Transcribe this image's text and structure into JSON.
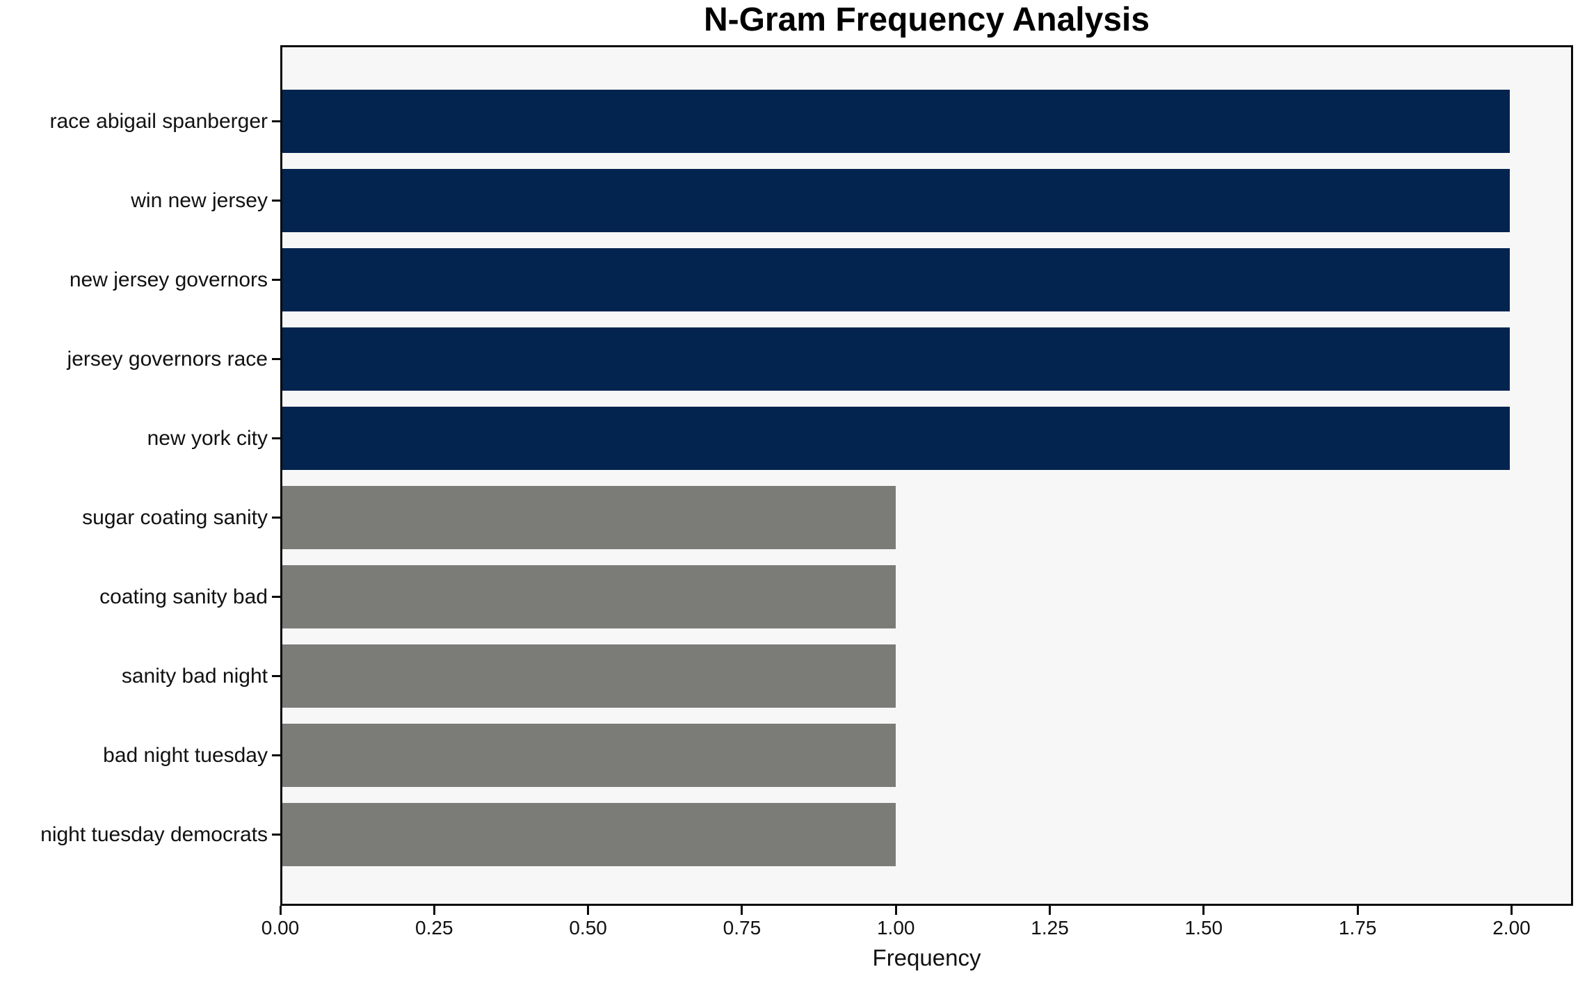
{
  "chart_data": {
    "type": "bar",
    "orientation": "horizontal",
    "title": "N-Gram Frequency Analysis",
    "xlabel": "Frequency",
    "ylabel": "",
    "categories": [
      "race abigail spanberger",
      "win new jersey",
      "new jersey governors",
      "jersey governors race",
      "new york city",
      "sugar coating sanity",
      "coating sanity bad",
      "sanity bad night",
      "bad night tuesday",
      "night tuesday democrats"
    ],
    "values": [
      2,
      2,
      2,
      2,
      2,
      1,
      1,
      1,
      1,
      1
    ],
    "bar_colors": [
      "#03244f",
      "#03244f",
      "#03244f",
      "#03244f",
      "#03244f",
      "#7b7b78",
      "#7b7b78",
      "#7b7b78",
      "#7b7b78",
      "#7b7b78"
    ],
    "xticks": [
      0.0,
      0.25,
      0.5,
      0.75,
      1.0,
      1.25,
      1.5,
      1.75,
      2.0
    ],
    "xtick_labels": [
      "0.00",
      "0.25",
      "0.50",
      "0.75",
      "1.00",
      "1.25",
      "1.50",
      "1.75",
      "2.00"
    ],
    "xlim": [
      0,
      2.1
    ],
    "grid": false,
    "legend": null,
    "colors": {
      "high_frequency_bar": "#03244f",
      "low_frequency_bar": "#7b7b78",
      "plot_background": "#f7f7f7",
      "figure_background": "#ffffff",
      "spine": "#0a0a0a",
      "text": "#111111"
    }
  }
}
